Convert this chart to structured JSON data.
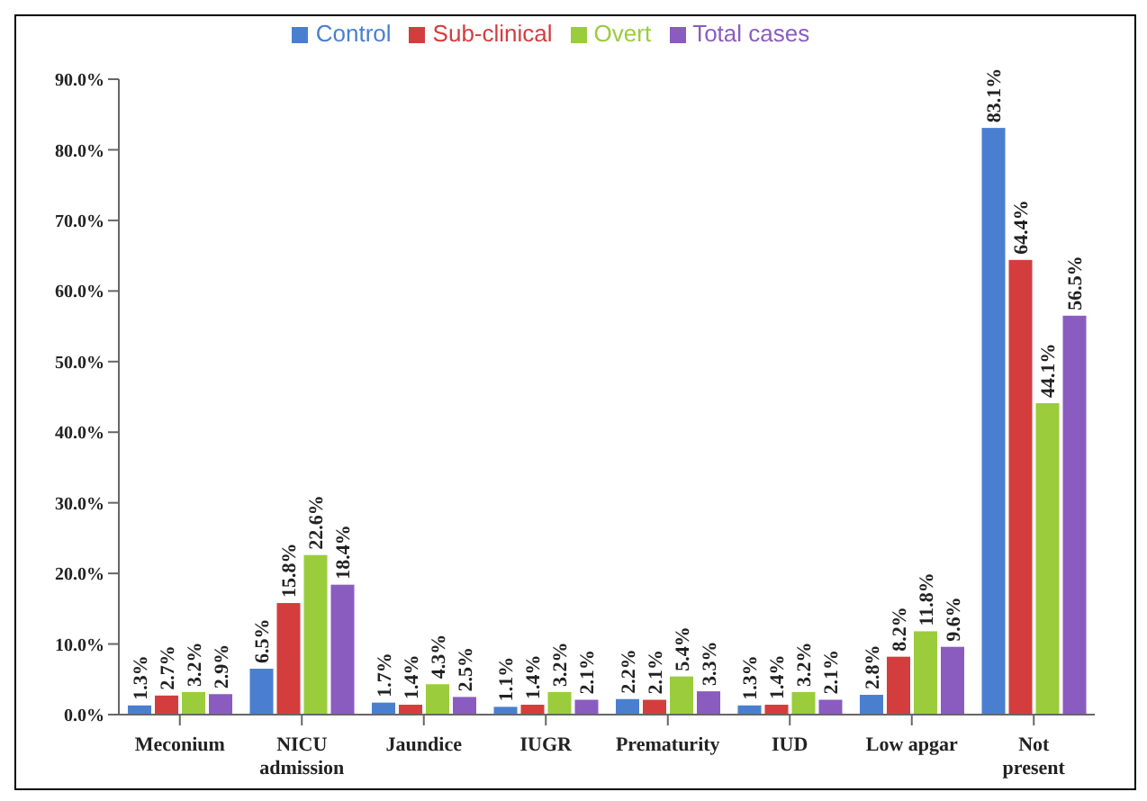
{
  "chart_data": {
    "type": "bar",
    "categories": [
      "Meconium",
      "NICU admission",
      "Jaundice",
      "IUGR",
      "Prematurity",
      "IUD",
      "Low apgar",
      "Not present"
    ],
    "series": [
      {
        "name": "Control",
        "color": "#4a7fd0",
        "values": [
          1.3,
          6.5,
          1.7,
          1.1,
          2.2,
          1.3,
          2.8,
          83.1
        ],
        "value_labels": [
          "1.3%",
          "6.5%",
          "1.7%",
          "1.1%",
          "2.2%",
          "1.3%",
          "2.8%",
          "83.1%"
        ]
      },
      {
        "name": "Sub-clinical",
        "color": "#d43d3d",
        "values": [
          2.7,
          15.8,
          1.4,
          1.4,
          2.1,
          1.4,
          8.2,
          64.4
        ],
        "value_labels": [
          "2.7%",
          "15.8%",
          "1.4%",
          "1.4%",
          "2.1%",
          "1.4%",
          "8.2%",
          "64.4%"
        ]
      },
      {
        "name": "Overt",
        "color": "#9acc3c",
        "values": [
          3.2,
          22.6,
          4.3,
          3.2,
          5.4,
          3.2,
          11.8,
          44.1
        ],
        "value_labels": [
          "3.2%",
          "22.6%",
          "4.3%",
          "3.2%",
          "5.4%",
          "3.2%",
          "11.8%",
          "44.1%"
        ]
      },
      {
        "name": "Total cases",
        "color": "#8a5cbf",
        "values": [
          2.9,
          18.4,
          2.5,
          2.1,
          3.3,
          2.1,
          9.6,
          56.5
        ],
        "value_labels": [
          "2.9%",
          "18.4%",
          "2.5%",
          "2.1%",
          "3.3%",
          "2.1%",
          "9.6%",
          "56.5%"
        ]
      }
    ],
    "ylim": [
      0,
      90
    ],
    "yticks": [
      {
        "value": 0,
        "label": "0.0%"
      },
      {
        "value": 10,
        "label": "10.0%"
      },
      {
        "value": 20,
        "label": "20.0%"
      },
      {
        "value": 30,
        "label": "30.0%"
      },
      {
        "value": 40,
        "label": "40.0%"
      },
      {
        "value": 50,
        "label": "50.0%"
      },
      {
        "value": 60,
        "label": "60.0%"
      },
      {
        "value": 70,
        "label": "70.0%"
      },
      {
        "value": 80,
        "label": "80.0%"
      },
      {
        "value": 90,
        "label": "90.0%"
      }
    ],
    "legend": "top",
    "grid": false
  }
}
